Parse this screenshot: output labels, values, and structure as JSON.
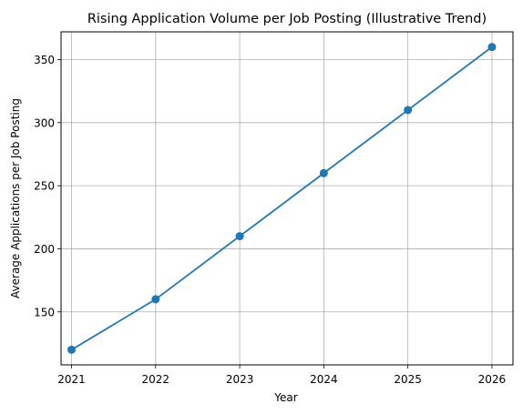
{
  "chart_data": {
    "type": "line",
    "title": "Rising Application Volume per Job Posting (Illustrative Trend)",
    "xlabel": "Year",
    "ylabel": "Average Applications per Job Posting",
    "x": [
      2021,
      2022,
      2023,
      2024,
      2025,
      2026
    ],
    "series": [
      {
        "values": [
          120,
          160,
          210,
          260,
          310,
          360
        ]
      }
    ],
    "xlim": [
      2020.875,
      2026.25
    ],
    "ylim": [
      108,
      372
    ],
    "xticks": [
      "2021",
      "2022",
      "2023",
      "2024",
      "2025",
      "2026"
    ],
    "yticks": [
      150,
      200,
      250,
      300,
      350
    ],
    "ytick_labels": [
      "150",
      "200",
      "250",
      "300",
      "350"
    ],
    "grid": true,
    "line_color": "#1f77b4",
    "marker": "circle"
  }
}
